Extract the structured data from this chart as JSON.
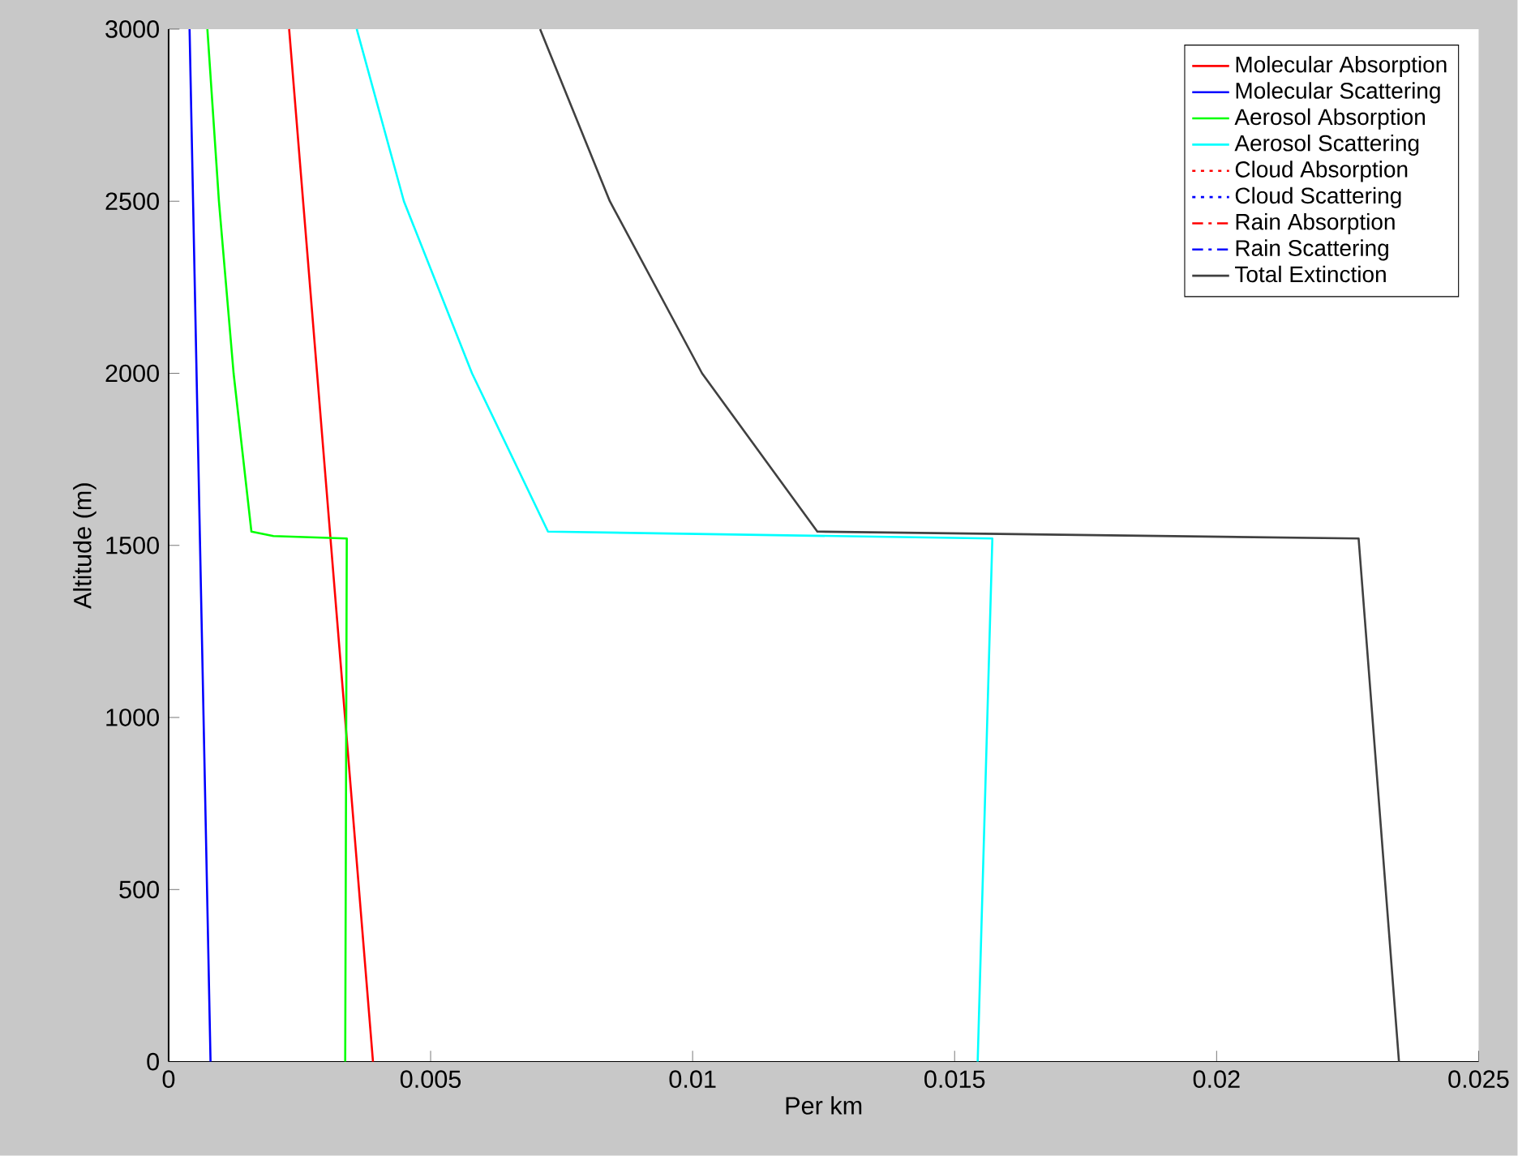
{
  "chart_data": {
    "type": "line",
    "xlabel": "Per km",
    "ylabel": "Altitude (m)",
    "xlim": [
      0,
      0.025
    ],
    "ylim": [
      0,
      3000
    ],
    "xticks": [
      0,
      0.005,
      0.01,
      0.015,
      0.02,
      0.025
    ],
    "yticks": [
      0,
      500,
      1000,
      1500,
      2000,
      2500,
      3000
    ],
    "legend": "top right",
    "grid": false,
    "marker": "none",
    "series": [
      {
        "name": "Molecular Absorption",
        "color": "#ff0000",
        "line_style": "solid",
        "x": [
          0.0039,
          0.0031,
          0.0023
        ],
        "values": [
          0,
          1500,
          3000
        ]
      },
      {
        "name": "Molecular Scattering",
        "color": "#0000ff",
        "line_style": "solid",
        "x": [
          0.0008,
          0.0006,
          0.0004
        ],
        "values": [
          0,
          1500,
          3000
        ]
      },
      {
        "name": "Aerosol Absorption",
        "color": "#00ff00",
        "line_style": "solid",
        "x": [
          0.00337,
          0.0034,
          0.002,
          0.00158,
          0.00124,
          0.00096,
          0.00074
        ],
        "values": [
          0,
          1520,
          1527,
          1540,
          2000,
          2500,
          3000
        ]
      },
      {
        "name": "Aerosol Scattering",
        "color": "#00ffff",
        "line_style": "solid",
        "x": [
          0.01544,
          0.01572,
          0.00724,
          0.00579,
          0.00449,
          0.00359
        ],
        "values": [
          0,
          1520,
          1540,
          2000,
          2500,
          3000
        ]
      },
      {
        "name": "Cloud Absorption",
        "color": "#ff0000",
        "line_style": "dotted",
        "x": [
          null,
          null
        ],
        "values": [
          null,
          null
        ]
      },
      {
        "name": "Cloud Scattering",
        "color": "#0000ff",
        "line_style": "dotted",
        "x": [
          null,
          null
        ],
        "values": [
          null,
          null
        ]
      },
      {
        "name": "Rain Absorption",
        "color": "#ff0000",
        "line_style": "dashdot",
        "x": [
          null,
          null
        ],
        "values": [
          null,
          null
        ]
      },
      {
        "name": "Rain Scattering",
        "color": "#0000ff",
        "line_style": "dashdot",
        "x": [
          null,
          null
        ],
        "values": [
          null,
          null
        ]
      },
      {
        "name": "Total Extinction",
        "color": "#404040",
        "line_style": "solid",
        "x": [
          0.02348,
          0.02271,
          0.01238,
          0.01018,
          0.00842,
          0.00709
        ],
        "values": [
          0,
          1520,
          1540,
          2000,
          2500,
          3000
        ]
      }
    ]
  }
}
